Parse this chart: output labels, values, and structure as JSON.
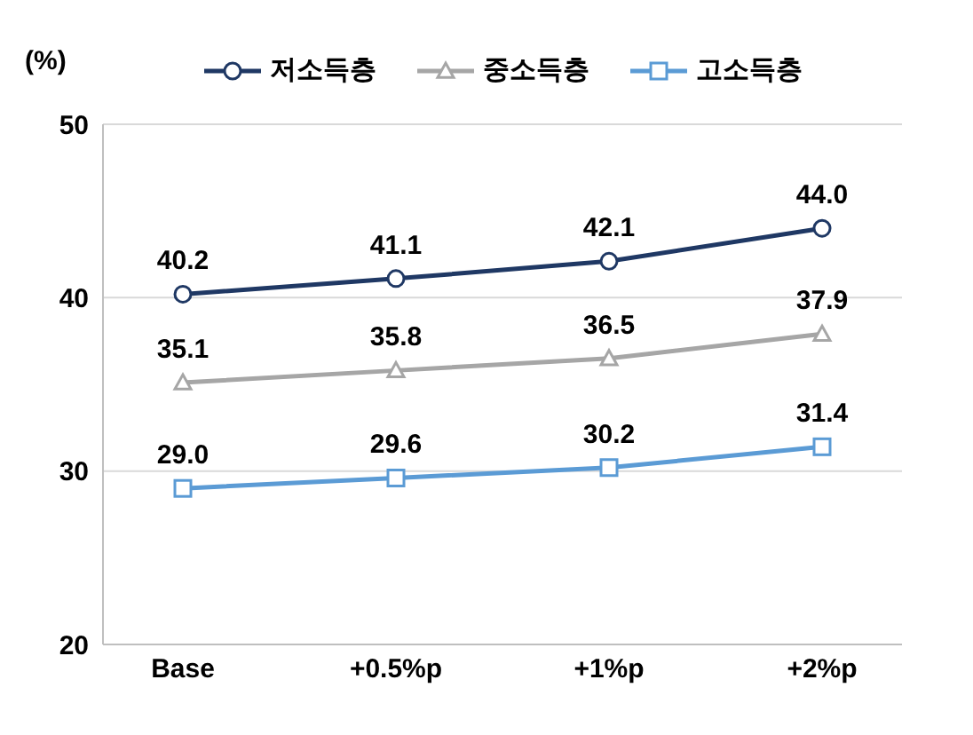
{
  "chart_data": {
    "type": "line",
    "ylabel": "(%)",
    "categories": [
      "Base",
      "+0.5%p",
      "+1%p",
      "+2%p"
    ],
    "series": [
      {
        "name": "저소득층",
        "color": "#1f3864",
        "marker": "circle",
        "values": [
          40.2,
          41.1,
          42.1,
          44.0
        ],
        "value_labels": [
          "40.2",
          "41.1",
          "42.1",
          "44.0"
        ]
      },
      {
        "name": "중소득층",
        "color": "#a6a6a6",
        "marker": "triangle",
        "values": [
          35.1,
          35.8,
          36.5,
          37.9
        ],
        "value_labels": [
          "35.1",
          "35.8",
          "36.5",
          "37.9"
        ]
      },
      {
        "name": "고소득층",
        "color": "#5b9bd5",
        "marker": "square",
        "values": [
          29.0,
          29.6,
          30.2,
          31.4
        ],
        "value_labels": [
          "29.0",
          "29.6",
          "30.2",
          "31.4"
        ]
      }
    ],
    "ylim": [
      20,
      50
    ],
    "yticks": [
      20,
      30,
      40,
      50
    ],
    "grid": "y",
    "legend": "top",
    "line_style": "solid"
  }
}
